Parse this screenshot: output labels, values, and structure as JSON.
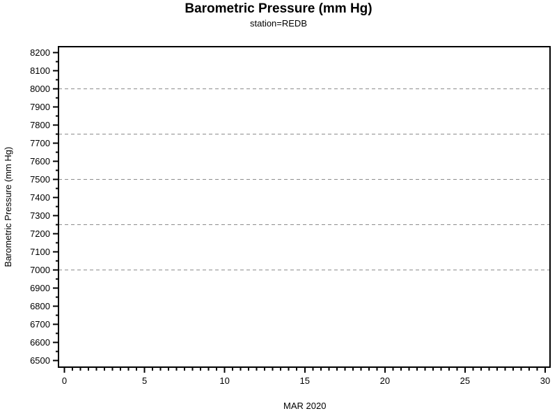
{
  "header": {
    "title": "Barometric Pressure (mm Hg)",
    "subtitle": "station=REDB"
  },
  "chart_data": {
    "type": "line",
    "title": "Barometric Pressure (mm Hg)",
    "subtitle": "station=REDB",
    "xlabel": "MAR 2020",
    "ylabel": "Barometric Pressure (mm Hg)",
    "xlim": [
      0,
      30
    ],
    "ylim": [
      6500,
      8200
    ],
    "x_major_ticks": [
      0,
      5,
      10,
      15,
      20,
      25,
      30
    ],
    "x_minor_step": 0.5,
    "y_major_ticks": [
      6500,
      6600,
      6700,
      6800,
      6900,
      7000,
      7100,
      7200,
      7300,
      7400,
      7500,
      7600,
      7700,
      7800,
      7900,
      8000,
      8100,
      8200
    ],
    "y_minor_step": 50,
    "reference_lines_y": [
      7000,
      7250,
      7500,
      7750,
      8000
    ],
    "series": [],
    "legend": null,
    "grid": "horizontal dashed reference lines only",
    "frame": true,
    "colors": {
      "background": "#ffffff",
      "axis": "#000000",
      "text": "#000000",
      "reference_line": "#8c8c8c"
    }
  }
}
